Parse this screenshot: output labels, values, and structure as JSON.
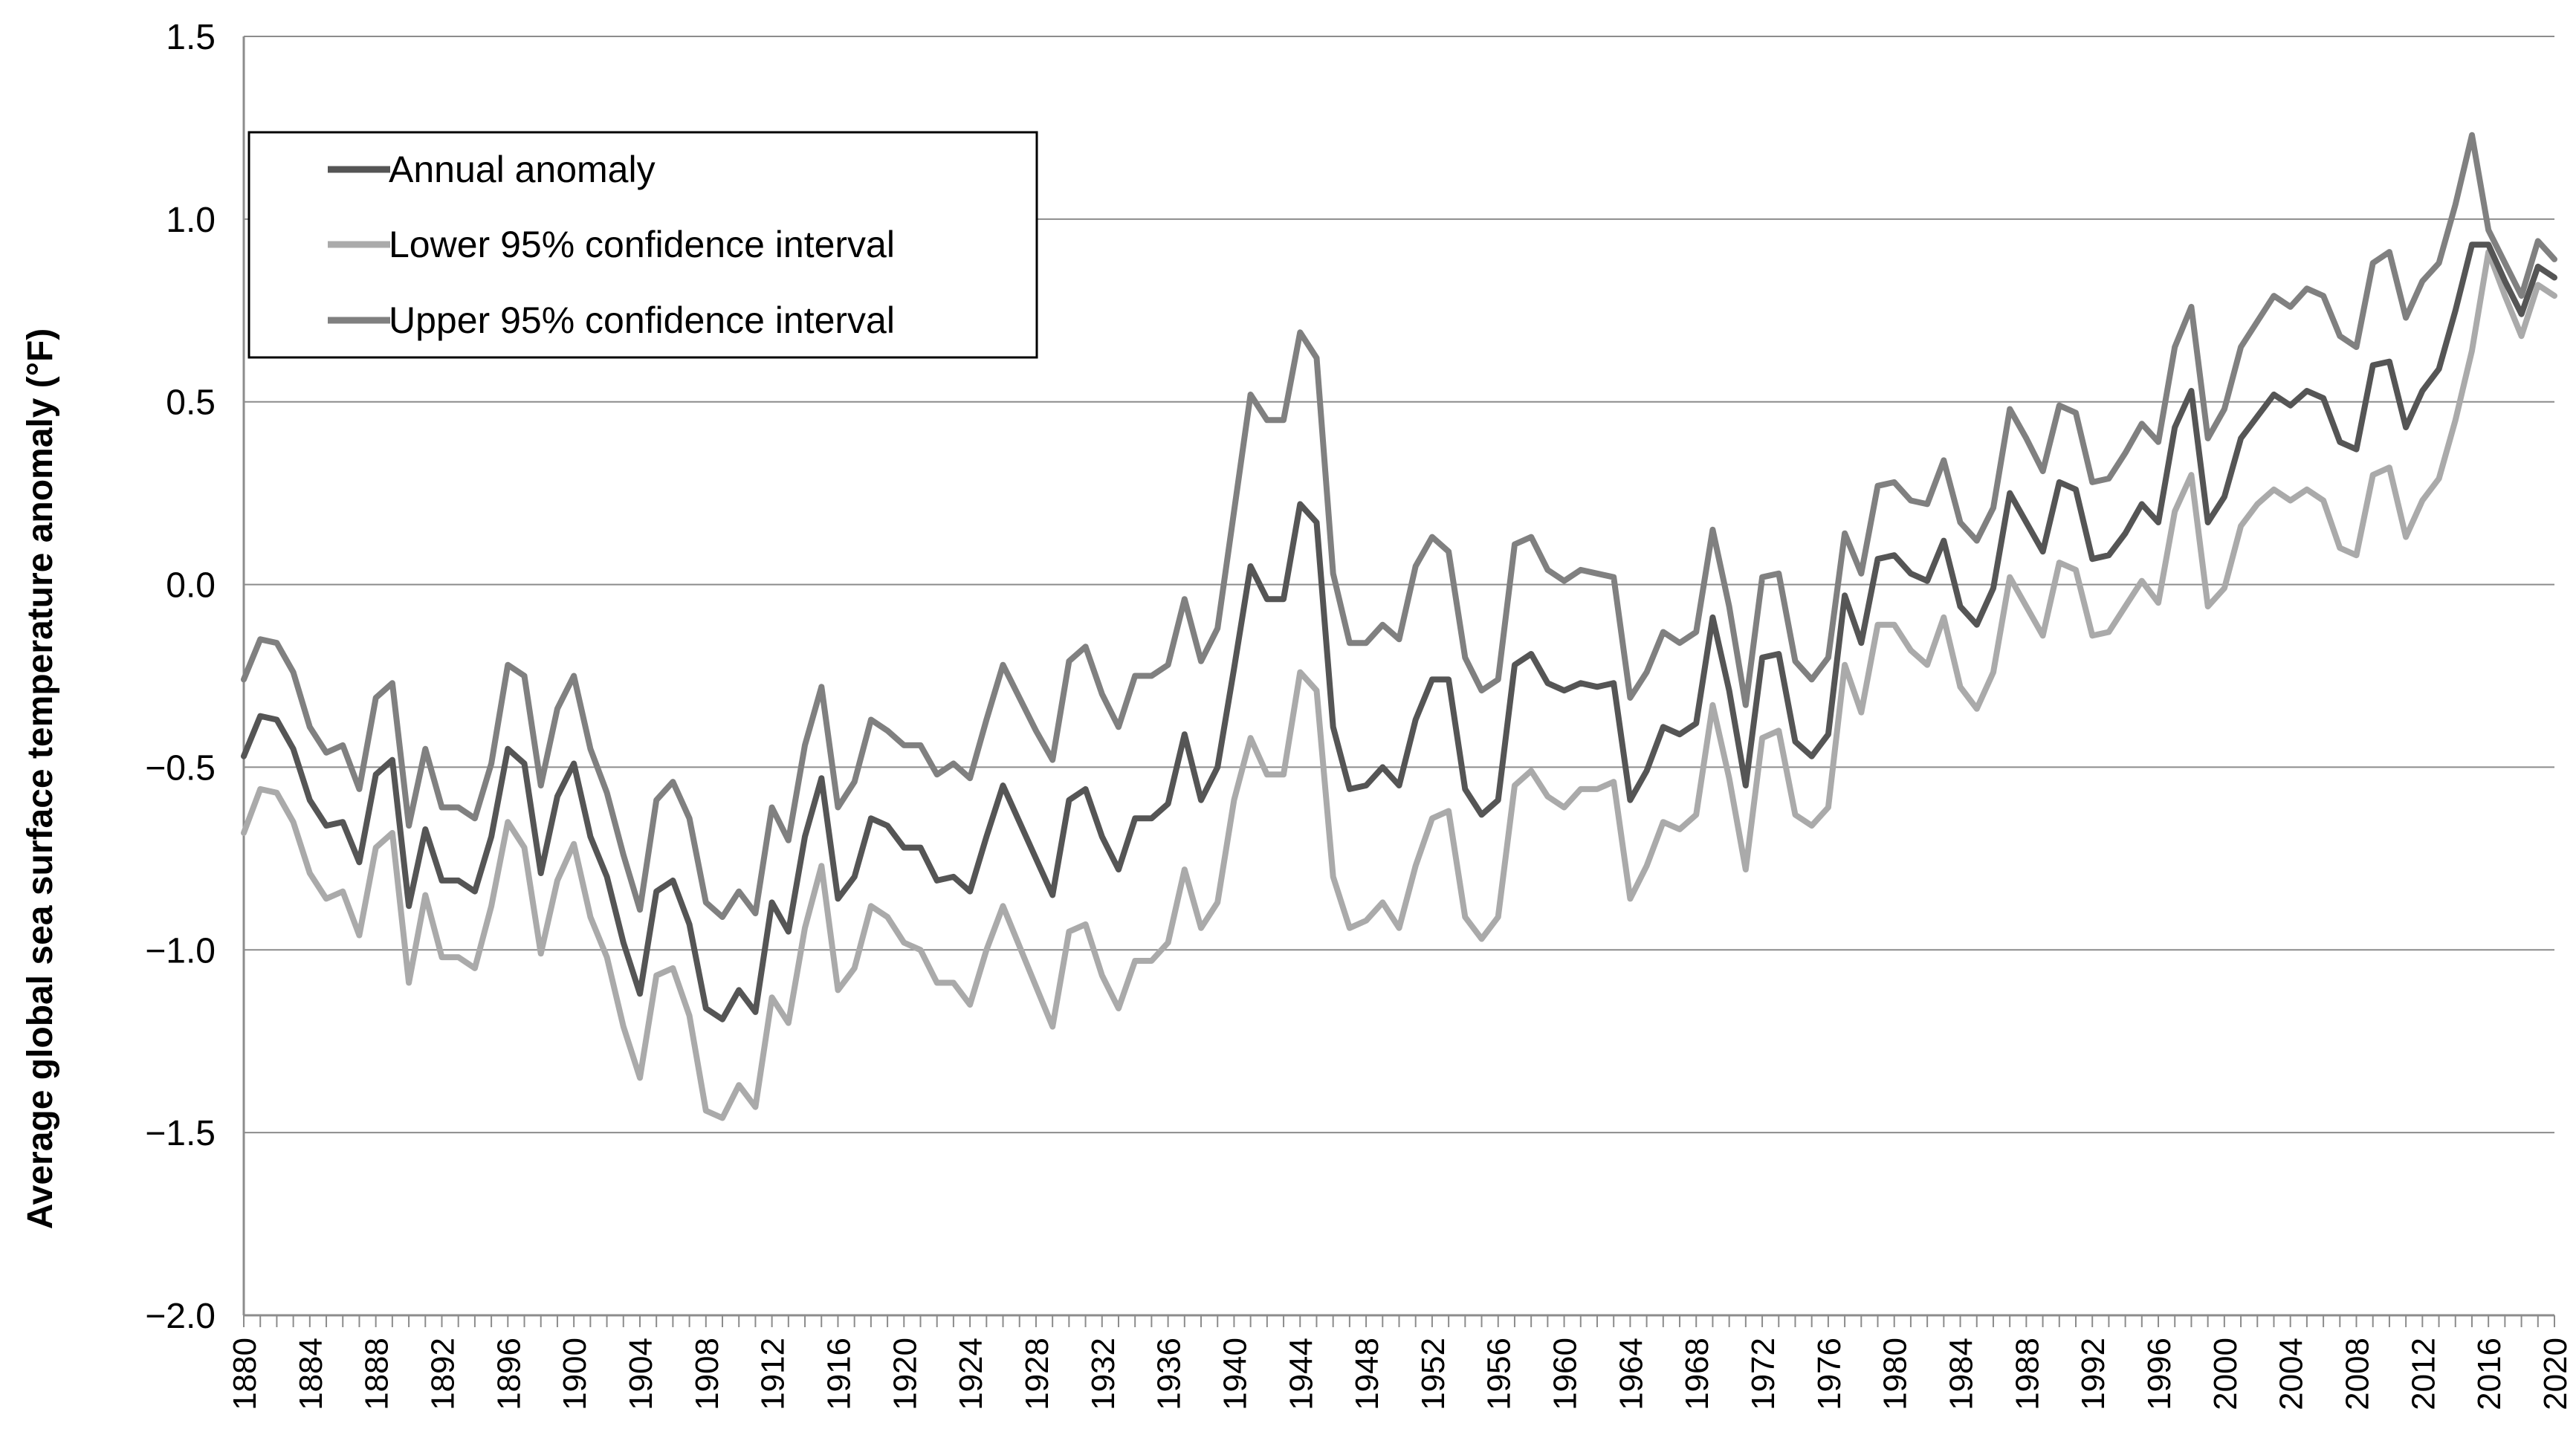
{
  "chart_data": {
    "type": "line",
    "title": "",
    "xlabel": "",
    "ylabel": "Average global sea surface temperature anomaly (°F)",
    "ylim": [
      -2.0,
      1.5
    ],
    "yticks": [
      "1.5",
      "1.0",
      "0.5",
      "0.0",
      "−0.5",
      "−1.0",
      "−1.5",
      "−2.0"
    ],
    "ytick_values": [
      1.5,
      1.0,
      0.5,
      0.0,
      -0.5,
      -1.0,
      -1.5,
      -2.0
    ],
    "xlim": [
      1880,
      2020
    ],
    "xtick_labels": [
      "1880",
      "1884",
      "1888",
      "1892",
      "1896",
      "1900",
      "1904",
      "1908",
      "1912",
      "1916",
      "1920",
      "1924",
      "1928",
      "1932",
      "1936",
      "1940",
      "1944",
      "1948",
      "1952",
      "1956",
      "1960",
      "1964",
      "1968",
      "1972",
      "1976",
      "1980",
      "1984",
      "1988",
      "1992",
      "1996",
      "2000",
      "2004",
      "2008",
      "2012",
      "2016",
      "2020"
    ],
    "grid": "horizontal",
    "legend_position": "top-left",
    "x_start": 1880,
    "series": [
      {
        "name": "Annual anomaly",
        "color": "#555555",
        "values": [
          -0.47,
          -0.36,
          -0.37,
          -0.45,
          -0.59,
          -0.66,
          -0.65,
          -0.76,
          -0.52,
          -0.48,
          -0.88,
          -0.67,
          -0.81,
          -0.81,
          -0.84,
          -0.69,
          -0.45,
          -0.49,
          -0.79,
          -0.58,
          -0.49,
          -0.69,
          -0.8,
          -0.98,
          -1.12,
          -0.84,
          -0.81,
          -0.93,
          -1.16,
          -1.19,
          -1.11,
          -1.17,
          -0.87,
          -0.95,
          -0.69,
          -0.53,
          -0.86,
          -0.8,
          -0.64,
          -0.66,
          -0.72,
          -0.72,
          -0.81,
          -0.8,
          -0.84,
          -0.69,
          -0.55,
          -0.65,
          -0.75,
          -0.85,
          -0.59,
          -0.56,
          -0.69,
          -0.78,
          -0.64,
          -0.64,
          -0.6,
          -0.41,
          -0.59,
          -0.5,
          -0.23,
          0.05,
          -0.04,
          -0.04,
          0.22,
          0.17,
          -0.39,
          -0.56,
          -0.55,
          -0.5,
          -0.55,
          -0.37,
          -0.26,
          -0.26,
          -0.56,
          -0.63,
          -0.59,
          -0.22,
          -0.19,
          -0.27,
          -0.29,
          -0.27,
          -0.28,
          -0.27,
          -0.59,
          -0.51,
          -0.39,
          -0.41,
          -0.38,
          -0.09,
          -0.29,
          -0.55,
          -0.2,
          -0.19,
          -0.43,
          -0.47,
          -0.41,
          -0.03,
          -0.16,
          0.07,
          0.08,
          0.03,
          0.01,
          0.12,
          -0.06,
          -0.11,
          -0.01,
          0.25,
          0.17,
          0.09,
          0.28,
          0.26,
          0.07,
          0.08,
          0.14,
          0.22,
          0.17,
          0.43,
          0.53,
          0.17,
          0.24,
          0.4,
          0.46,
          0.52,
          0.49,
          0.53,
          0.51,
          0.39,
          0.37,
          0.6,
          0.61,
          0.43,
          0.53,
          0.59,
          0.75,
          0.93,
          0.93,
          0.83,
          0.74,
          0.87,
          0.84
        ]
      },
      {
        "name": "Lower 95% confidence interval",
        "color": "#aaaaaa",
        "values": [
          -0.68,
          -0.56,
          -0.57,
          -0.65,
          -0.79,
          -0.86,
          -0.84,
          -0.96,
          -0.72,
          -0.68,
          -1.09,
          -0.85,
          -1.02,
          -1.02,
          -1.05,
          -0.88,
          -0.65,
          -0.72,
          -1.01,
          -0.81,
          -0.71,
          -0.91,
          -1.02,
          -1.21,
          -1.35,
          -1.07,
          -1.05,
          -1.18,
          -1.44,
          -1.46,
          -1.37,
          -1.43,
          -1.13,
          -1.2,
          -0.94,
          -0.77,
          -1.11,
          -1.05,
          -0.88,
          -0.91,
          -0.98,
          -1.0,
          -1.09,
          -1.09,
          -1.15,
          -1.0,
          -0.88,
          -0.99,
          -1.1,
          -1.21,
          -0.95,
          -0.93,
          -1.07,
          -1.16,
          -1.03,
          -1.03,
          -0.98,
          -0.78,
          -0.94,
          -0.87,
          -0.59,
          -0.42,
          -0.52,
          -0.52,
          -0.24,
          -0.29,
          -0.8,
          -0.94,
          -0.92,
          -0.87,
          -0.94,
          -0.77,
          -0.64,
          -0.62,
          -0.91,
          -0.97,
          -0.91,
          -0.55,
          -0.51,
          -0.58,
          -0.61,
          -0.56,
          -0.56,
          -0.54,
          -0.86,
          -0.77,
          -0.65,
          -0.67,
          -0.63,
          -0.33,
          -0.53,
          -0.78,
          -0.42,
          -0.4,
          -0.63,
          -0.66,
          -0.61,
          -0.22,
          -0.35,
          -0.11,
          -0.11,
          -0.18,
          -0.22,
          -0.09,
          -0.28,
          -0.34,
          -0.24,
          0.02,
          -0.06,
          -0.14,
          0.06,
          0.04,
          -0.14,
          -0.13,
          -0.06,
          0.01,
          -0.05,
          0.2,
          0.3,
          -0.06,
          -0.01,
          0.16,
          0.22,
          0.26,
          0.23,
          0.26,
          0.23,
          0.1,
          0.08,
          0.3,
          0.32,
          0.13,
          0.23,
          0.29,
          0.45,
          0.64,
          0.91,
          0.79,
          0.68,
          0.82,
          0.79
        ]
      },
      {
        "name": "Upper 95% confidence interval",
        "color": "#808080",
        "values": [
          -0.26,
          -0.15,
          -0.16,
          -0.24,
          -0.39,
          -0.46,
          -0.44,
          -0.56,
          -0.31,
          -0.27,
          -0.66,
          -0.45,
          -0.61,
          -0.61,
          -0.64,
          -0.49,
          -0.22,
          -0.25,
          -0.55,
          -0.34,
          -0.25,
          -0.45,
          -0.57,
          -0.74,
          -0.89,
          -0.59,
          -0.54,
          -0.64,
          -0.87,
          -0.91,
          -0.84,
          -0.9,
          -0.61,
          -0.7,
          -0.44,
          -0.28,
          -0.61,
          -0.54,
          -0.37,
          -0.4,
          -0.44,
          -0.44,
          -0.52,
          -0.49,
          -0.53,
          -0.37,
          -0.22,
          -0.31,
          -0.4,
          -0.48,
          -0.21,
          -0.17,
          -0.3,
          -0.39,
          -0.25,
          -0.25,
          -0.22,
          -0.04,
          -0.21,
          -0.12,
          0.2,
          0.52,
          0.45,
          0.45,
          0.69,
          0.62,
          0.03,
          -0.16,
          -0.16,
          -0.11,
          -0.15,
          0.05,
          0.13,
          0.09,
          -0.2,
          -0.29,
          -0.26,
          0.11,
          0.13,
          0.04,
          0.01,
          0.04,
          0.03,
          0.02,
          -0.31,
          -0.24,
          -0.13,
          -0.16,
          -0.13,
          0.15,
          -0.06,
          -0.33,
          0.02,
          0.03,
          -0.21,
          -0.26,
          -0.2,
          0.14,
          0.03,
          0.27,
          0.28,
          0.23,
          0.22,
          0.34,
          0.17,
          0.12,
          0.21,
          0.48,
          0.4,
          0.31,
          0.49,
          0.47,
          0.28,
          0.29,
          0.36,
          0.44,
          0.39,
          0.65,
          0.76,
          0.4,
          0.48,
          0.65,
          0.72,
          0.79,
          0.76,
          0.81,
          0.79,
          0.68,
          0.65,
          0.88,
          0.91,
          0.73,
          0.83,
          0.88,
          1.04,
          1.23,
          0.97,
          0.88,
          0.79,
          0.94,
          0.89
        ]
      }
    ]
  }
}
